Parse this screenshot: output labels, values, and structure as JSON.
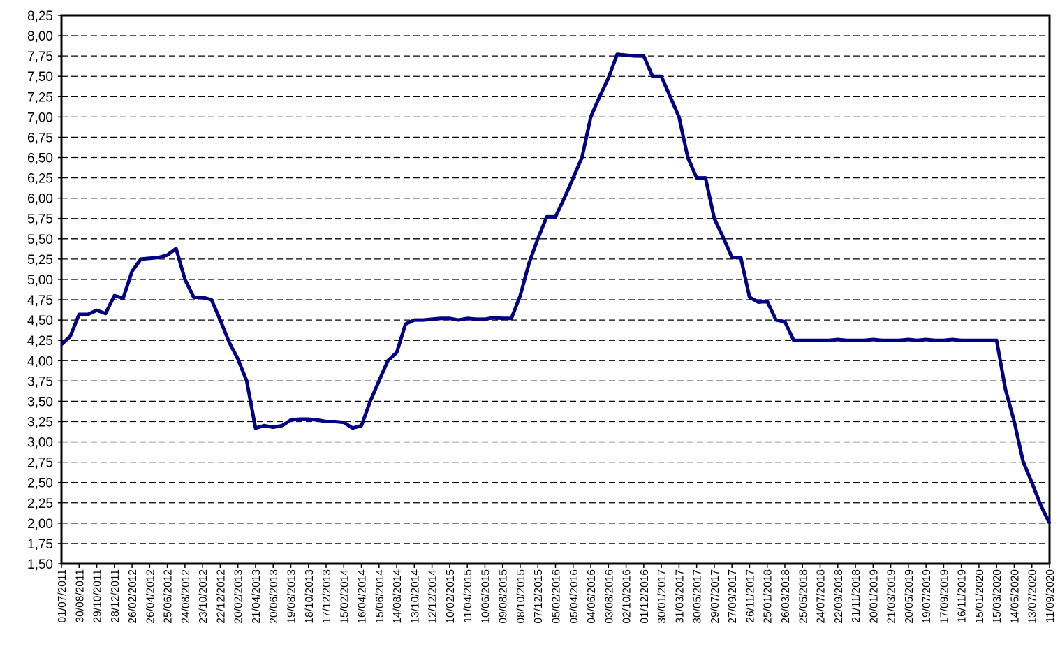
{
  "chart_data": {
    "type": "line",
    "categories": [
      "01/07/2011",
      null,
      "30/08/2011",
      null,
      "29/10/2011",
      null,
      "28/12/2011",
      null,
      "26/02/2012",
      null,
      "26/04/2012",
      null,
      "25/06/2012",
      null,
      "24/08/2012",
      null,
      "23/10/2012",
      null,
      "22/12/2012",
      null,
      "20/02/2013",
      null,
      "21/04/2013",
      null,
      "20/06/2013",
      null,
      "19/08/2013",
      null,
      "18/10/2013",
      null,
      "17/12/2013",
      null,
      "15/02/2014",
      null,
      "16/04/2014",
      null,
      "15/06/2014",
      null,
      "14/08/2014",
      null,
      "13/10/2014",
      null,
      "12/12/2014",
      null,
      "10/02/2015",
      null,
      "11/04/2015",
      null,
      "10/06/2015",
      null,
      "09/08/2015",
      null,
      "08/10/2015",
      null,
      "07/12/2015",
      null,
      "05/02/2016",
      null,
      "05/04/2016",
      null,
      "04/06/2016",
      null,
      "03/08/2016",
      null,
      "02/10/2016",
      null,
      "01/12/2016",
      null,
      "30/01/2017",
      null,
      "31/03/2017",
      null,
      "30/05/2017",
      null,
      "29/07/2017",
      null,
      "27/09/2017",
      null,
      "26/11/2017",
      null,
      "25/01/2018",
      null,
      "26/03/2018",
      null,
      "25/05/2018",
      null,
      "24/07/2018",
      null,
      "22/09/2018",
      null,
      "21/11/2018",
      null,
      "20/01/2019",
      null,
      "21/03/2019",
      null,
      "20/05/2019",
      null,
      "19/07/2019",
      null,
      "17/09/2019",
      null,
      "16/11/2019",
      null,
      "15/01/2020",
      null,
      "15/03/2020",
      null,
      "14/05/2020",
      null,
      "13/07/2020",
      null,
      "11/09/2020"
    ],
    "series": [
      {
        "color": "#000080",
        "values": [
          4.2,
          4.3,
          4.57,
          4.57,
          4.62,
          4.58,
          4.8,
          4.77,
          5.1,
          5.25,
          5.26,
          5.27,
          5.3,
          5.38,
          5.0,
          4.78,
          4.78,
          4.75,
          4.5,
          4.23,
          4.02,
          3.75,
          3.17,
          3.2,
          3.18,
          3.2,
          3.27,
          3.28,
          3.28,
          3.27,
          3.25,
          3.25,
          3.24,
          3.17,
          3.2,
          3.5,
          3.75,
          4.0,
          4.1,
          4.45,
          4.5,
          4.5,
          4.51,
          4.52,
          4.52,
          4.5,
          4.52,
          4.51,
          4.51,
          4.53,
          4.52,
          4.52,
          4.8,
          5.2,
          5.5,
          5.77,
          5.77,
          6.0,
          6.25,
          6.5,
          7.0,
          7.25,
          7.48,
          7.77,
          7.76,
          7.75,
          7.75,
          7.5,
          7.5,
          7.25,
          7.0,
          6.5,
          6.25,
          6.25,
          5.75,
          5.52,
          5.27,
          5.27,
          4.78,
          4.72,
          4.73,
          4.5,
          4.48,
          4.25,
          4.25,
          4.25,
          4.25,
          4.25,
          4.26,
          4.25,
          4.25,
          4.25,
          4.26,
          4.25,
          4.25,
          4.25,
          4.26,
          4.25,
          4.26,
          4.25,
          4.25,
          4.26,
          4.25,
          4.25,
          4.25,
          4.25,
          4.25,
          3.65,
          3.25,
          2.76,
          2.5,
          2.22,
          2.0
        ]
      }
    ],
    "ylim": [
      1.5,
      8.25
    ],
    "yticks": [
      {
        "value": 1.5,
        "label": "1,50"
      },
      {
        "value": 1.75,
        "label": "1,75"
      },
      {
        "value": 2,
        "label": "2,00"
      },
      {
        "value": 2.25,
        "label": "2,25"
      },
      {
        "value": 2.5,
        "label": "2,50"
      },
      {
        "value": 2.75,
        "label": "2,75"
      },
      {
        "value": 3,
        "label": "3,00"
      },
      {
        "value": 3.25,
        "label": "3,25"
      },
      {
        "value": 3.5,
        "label": "3,50"
      },
      {
        "value": 3.75,
        "label": "3,75"
      },
      {
        "value": 4,
        "label": "4,00"
      },
      {
        "value": 4.25,
        "label": "4,25"
      },
      {
        "value": 4.5,
        "label": "4,50"
      },
      {
        "value": 4.75,
        "label": "4,75"
      },
      {
        "value": 5,
        "label": "5,00"
      },
      {
        "value": 5.25,
        "label": "5,25"
      },
      {
        "value": 5.5,
        "label": "5,50"
      },
      {
        "value": 5.75,
        "label": "5,75"
      },
      {
        "value": 6,
        "label": "6,00"
      },
      {
        "value": 6.25,
        "label": "6,25"
      },
      {
        "value": 6.5,
        "label": "6,50"
      },
      {
        "value": 6.75,
        "label": "6,75"
      },
      {
        "value": 7,
        "label": "7,00"
      },
      {
        "value": 7.25,
        "label": "7,25"
      },
      {
        "value": 7.5,
        "label": "7,50"
      },
      {
        "value": 7.75,
        "label": "7,75"
      },
      {
        "value": 8,
        "label": "8,00"
      },
      {
        "value": 8.25,
        "label": "8,25"
      }
    ],
    "grid": true
  }
}
